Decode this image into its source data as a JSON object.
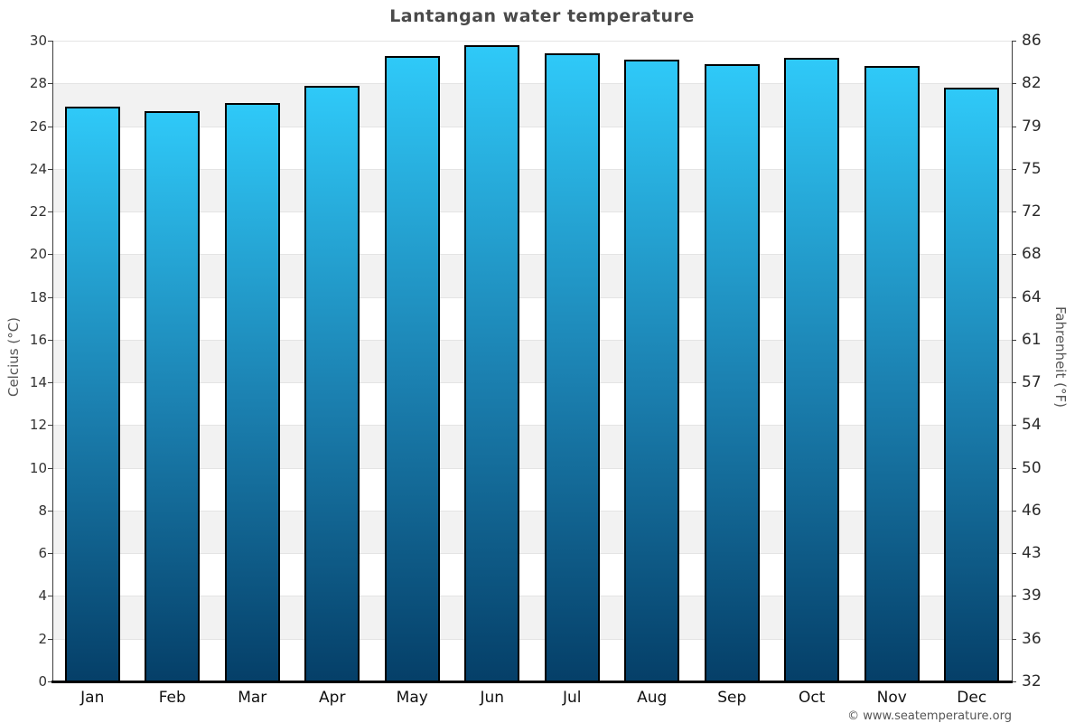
{
  "title": "Lantangan water temperature",
  "copyright_text": "© www.seatemperature.org",
  "chart_data": {
    "type": "bar",
    "title": "Lantangan water temperature",
    "categories": [
      "Jan",
      "Feb",
      "Mar",
      "Apr",
      "May",
      "Jun",
      "Jul",
      "Aug",
      "Sep",
      "Oct",
      "Nov",
      "Dec"
    ],
    "values": [
      26.9,
      26.7,
      27.1,
      27.9,
      29.3,
      29.8,
      29.4,
      29.1,
      28.9,
      29.2,
      28.8,
      27.8
    ],
    "xlabel": "",
    "ylabel_left": "Celcius (°C)",
    "ylabel_right": "Fahrenheit (°F)",
    "ylim": [
      0,
      30
    ],
    "celsius_ticks": [
      0,
      2,
      4,
      6,
      8,
      10,
      12,
      14,
      16,
      18,
      20,
      22,
      24,
      26,
      28,
      30
    ],
    "fahrenheit_ticks": [
      32,
      36,
      39,
      43,
      46,
      50,
      54,
      57,
      61,
      64,
      68,
      72,
      75,
      79,
      82,
      86
    ],
    "grid": "alternating horizontal bands every 2 degrees",
    "legend": "none",
    "band_color": "#f2f2f2",
    "bar_gradient_top": "#2fc9f8",
    "bar_gradient_mid": "#1b80b0",
    "bar_gradient_bottom": "#053f68",
    "bar_border_color": "#000000"
  }
}
